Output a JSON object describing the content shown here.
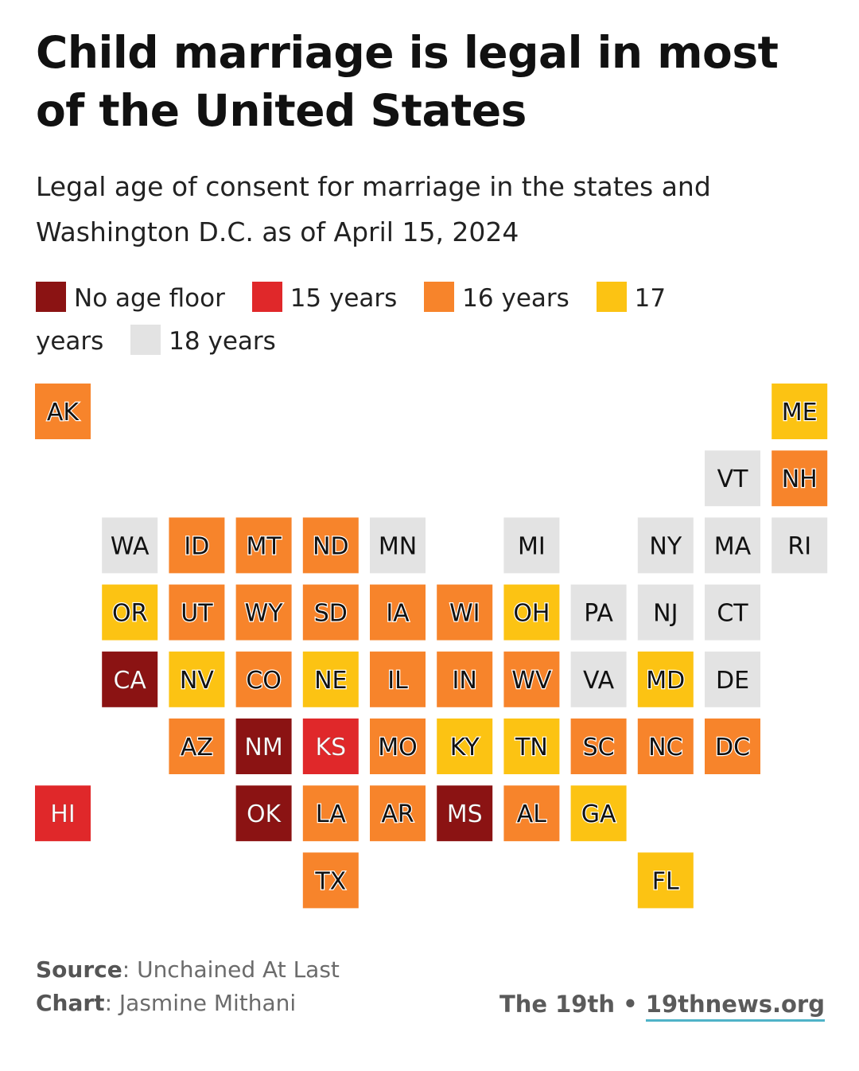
{
  "title": "Child marriage is legal in most of the United States",
  "subtitle": "Legal age of consent for marriage in the states and Washington D.C. as of April 15, 2024",
  "legend": [
    {
      "label": "No age floor",
      "color": "#8b1313"
    },
    {
      "label": "15 years",
      "color": "#e0282a"
    },
    {
      "label": "16 years",
      "color": "#f7842b"
    },
    {
      "label": "17 years",
      "color": "#fcc313"
    },
    {
      "label": "18 years",
      "color": "#e3e3e3"
    }
  ],
  "footer": {
    "source_label": "Source",
    "source_text": ": Unchained At Last",
    "chart_label": "Chart",
    "chart_text": ": Jasmine Mithani",
    "brand_name": "The 19th",
    "brand_separator": "•",
    "brand_url": "19thnews.org"
  },
  "chart_data": {
    "type": "tile-map",
    "categories": [
      "No age floor",
      "15 years",
      "16 years",
      "17 years",
      "18 years"
    ],
    "tiles": [
      {
        "state": "AK",
        "row": 0,
        "col": 0,
        "category": 2
      },
      {
        "state": "ME",
        "row": 0,
        "col": 11,
        "category": 3
      },
      {
        "state": "VT",
        "row": 1,
        "col": 10,
        "category": 4
      },
      {
        "state": "NH",
        "row": 1,
        "col": 11,
        "category": 2
      },
      {
        "state": "WA",
        "row": 2,
        "col": 1,
        "category": 4
      },
      {
        "state": "ID",
        "row": 2,
        "col": 2,
        "category": 2
      },
      {
        "state": "MT",
        "row": 2,
        "col": 3,
        "category": 2
      },
      {
        "state": "ND",
        "row": 2,
        "col": 4,
        "category": 2
      },
      {
        "state": "MN",
        "row": 2,
        "col": 5,
        "category": 4
      },
      {
        "state": "MI",
        "row": 2,
        "col": 7,
        "category": 4
      },
      {
        "state": "NY",
        "row": 2,
        "col": 9,
        "category": 4
      },
      {
        "state": "MA",
        "row": 2,
        "col": 10,
        "category": 4
      },
      {
        "state": "RI",
        "row": 2,
        "col": 11,
        "category": 4
      },
      {
        "state": "OR",
        "row": 3,
        "col": 1,
        "category": 3
      },
      {
        "state": "UT",
        "row": 3,
        "col": 2,
        "category": 2
      },
      {
        "state": "WY",
        "row": 3,
        "col": 3,
        "category": 2
      },
      {
        "state": "SD",
        "row": 3,
        "col": 4,
        "category": 2
      },
      {
        "state": "IA",
        "row": 3,
        "col": 5,
        "category": 2
      },
      {
        "state": "WI",
        "row": 3,
        "col": 6,
        "category": 2
      },
      {
        "state": "OH",
        "row": 3,
        "col": 7,
        "category": 3
      },
      {
        "state": "PA",
        "row": 3,
        "col": 8,
        "category": 4
      },
      {
        "state": "NJ",
        "row": 3,
        "col": 9,
        "category": 4
      },
      {
        "state": "CT",
        "row": 3,
        "col": 10,
        "category": 4
      },
      {
        "state": "CA",
        "row": 4,
        "col": 1,
        "category": 0
      },
      {
        "state": "NV",
        "row": 4,
        "col": 2,
        "category": 3
      },
      {
        "state": "CO",
        "row": 4,
        "col": 3,
        "category": 2
      },
      {
        "state": "NE",
        "row": 4,
        "col": 4,
        "category": 3
      },
      {
        "state": "IL",
        "row": 4,
        "col": 5,
        "category": 2
      },
      {
        "state": "IN",
        "row": 4,
        "col": 6,
        "category": 2
      },
      {
        "state": "WV",
        "row": 4,
        "col": 7,
        "category": 2
      },
      {
        "state": "VA",
        "row": 4,
        "col": 8,
        "category": 4
      },
      {
        "state": "MD",
        "row": 4,
        "col": 9,
        "category": 3
      },
      {
        "state": "DE",
        "row": 4,
        "col": 10,
        "category": 4
      },
      {
        "state": "AZ",
        "row": 5,
        "col": 2,
        "category": 2
      },
      {
        "state": "NM",
        "row": 5,
        "col": 3,
        "category": 0
      },
      {
        "state": "KS",
        "row": 5,
        "col": 4,
        "category": 1
      },
      {
        "state": "MO",
        "row": 5,
        "col": 5,
        "category": 2
      },
      {
        "state": "KY",
        "row": 5,
        "col": 6,
        "category": 3
      },
      {
        "state": "TN",
        "row": 5,
        "col": 7,
        "category": 3
      },
      {
        "state": "SC",
        "row": 5,
        "col": 8,
        "category": 2
      },
      {
        "state": "NC",
        "row": 5,
        "col": 9,
        "category": 2
      },
      {
        "state": "DC",
        "row": 5,
        "col": 10,
        "category": 2
      },
      {
        "state": "HI",
        "row": 6,
        "col": 0,
        "category": 1
      },
      {
        "state": "OK",
        "row": 6,
        "col": 3,
        "category": 0
      },
      {
        "state": "LA",
        "row": 6,
        "col": 4,
        "category": 2
      },
      {
        "state": "AR",
        "row": 6,
        "col": 5,
        "category": 2
      },
      {
        "state": "MS",
        "row": 6,
        "col": 6,
        "category": 0
      },
      {
        "state": "AL",
        "row": 6,
        "col": 7,
        "category": 2
      },
      {
        "state": "GA",
        "row": 6,
        "col": 8,
        "category": 3
      },
      {
        "state": "TX",
        "row": 7,
        "col": 4,
        "category": 2
      },
      {
        "state": "FL",
        "row": 7,
        "col": 9,
        "category": 3
      }
    ]
  }
}
